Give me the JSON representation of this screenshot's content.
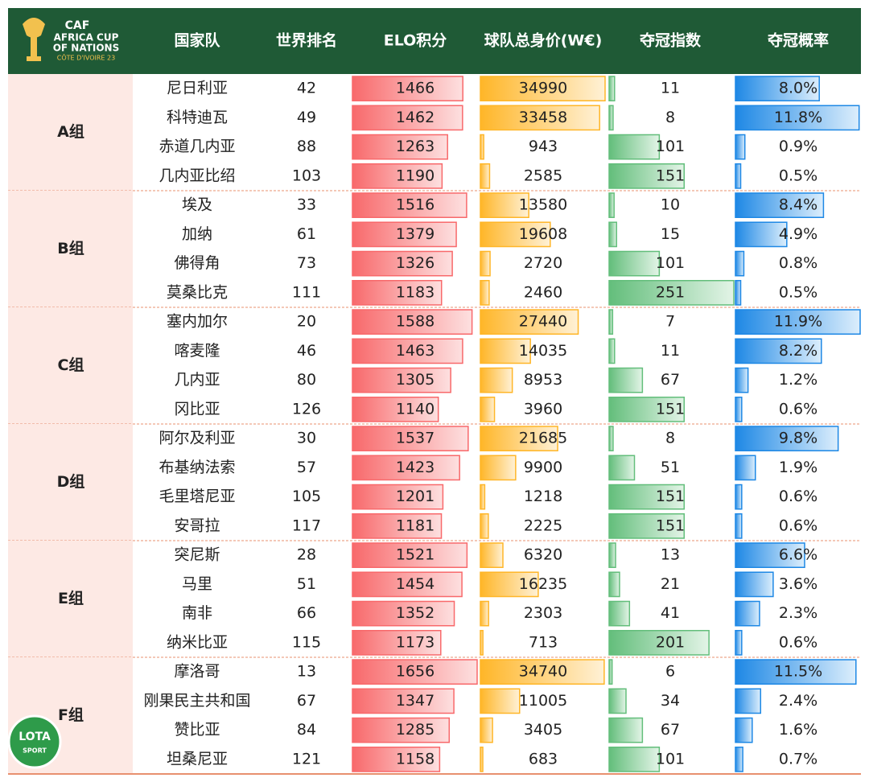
{
  "logo": {
    "caf": "CAF",
    "line1": "AFRICA CUP",
    "line2": "OF NATIONS",
    "line3": "CÔTE D'IVOIRE 23"
  },
  "watermark": {
    "top": "LOTA",
    "bottom": "SPORT"
  },
  "table": {
    "columns": [
      "国家队",
      "世界排名",
      "ELO积分",
      "球队总身价(W€)",
      "夺冠指数",
      "夺冠概率"
    ],
    "groups": [
      {
        "name": "A组",
        "rows": [
          {
            "team": "尼日利亚",
            "rank": 42,
            "elo": 1466,
            "value": 34990,
            "index": 11,
            "prob": 8.0,
            "prob_label": "8.0%"
          },
          {
            "team": "科特迪瓦",
            "rank": 49,
            "elo": 1462,
            "value": 33458,
            "index": 8,
            "prob": 11.8,
            "prob_label": "11.8%"
          },
          {
            "team": "赤道几内亚",
            "rank": 88,
            "elo": 1263,
            "value": 943,
            "index": 101,
            "prob": 0.9,
            "prob_label": "0.9%"
          },
          {
            "team": "几内亚比绍",
            "rank": 103,
            "elo": 1190,
            "value": 2585,
            "index": 151,
            "prob": 0.5,
            "prob_label": "0.5%"
          }
        ]
      },
      {
        "name": "B组",
        "rows": [
          {
            "team": "埃及",
            "rank": 33,
            "elo": 1516,
            "value": 13580,
            "index": 10,
            "prob": 8.4,
            "prob_label": "8.4%"
          },
          {
            "team": "加纳",
            "rank": 61,
            "elo": 1379,
            "value": 19608,
            "index": 15,
            "prob": 4.9,
            "prob_label": "4.9%"
          },
          {
            "team": "佛得角",
            "rank": 73,
            "elo": 1326,
            "value": 2720,
            "index": 101,
            "prob": 0.8,
            "prob_label": "0.8%"
          },
          {
            "team": "莫桑比克",
            "rank": 111,
            "elo": 1183,
            "value": 2460,
            "index": 251,
            "prob": 0.5,
            "prob_label": "0.5%"
          }
        ]
      },
      {
        "name": "C组",
        "rows": [
          {
            "team": "塞内加尔",
            "rank": 20,
            "elo": 1588,
            "value": 27440,
            "index": 7,
            "prob": 11.9,
            "prob_label": "11.9%"
          },
          {
            "team": "喀麦隆",
            "rank": 46,
            "elo": 1463,
            "value": 14035,
            "index": 11,
            "prob": 8.2,
            "prob_label": "8.2%"
          },
          {
            "team": "几内亚",
            "rank": 80,
            "elo": 1305,
            "value": 8953,
            "index": 67,
            "prob": 1.2,
            "prob_label": "1.2%"
          },
          {
            "team": "冈比亚",
            "rank": 126,
            "elo": 1140,
            "value": 3960,
            "index": 151,
            "prob": 0.6,
            "prob_label": "0.6%"
          }
        ]
      },
      {
        "name": "D组",
        "rows": [
          {
            "team": "阿尔及利亚",
            "rank": 30,
            "elo": 1537,
            "value": 21685,
            "index": 8,
            "prob": 9.8,
            "prob_label": "9.8%"
          },
          {
            "team": "布基纳法索",
            "rank": 57,
            "elo": 1423,
            "value": 9900,
            "index": 51,
            "prob": 1.9,
            "prob_label": "1.9%"
          },
          {
            "team": "毛里塔尼亚",
            "rank": 105,
            "elo": 1201,
            "value": 1218,
            "index": 151,
            "prob": 0.6,
            "prob_label": "0.6%"
          },
          {
            "team": "安哥拉",
            "rank": 117,
            "elo": 1181,
            "value": 2225,
            "index": 151,
            "prob": 0.6,
            "prob_label": "0.6%"
          }
        ]
      },
      {
        "name": "E组",
        "rows": [
          {
            "team": "突尼斯",
            "rank": 28,
            "elo": 1521,
            "value": 6320,
            "index": 13,
            "prob": 6.6,
            "prob_label": "6.6%"
          },
          {
            "team": "马里",
            "rank": 51,
            "elo": 1454,
            "value": 16235,
            "index": 21,
            "prob": 3.6,
            "prob_label": "3.6%"
          },
          {
            "team": "南非",
            "rank": 66,
            "elo": 1352,
            "value": 2303,
            "index": 41,
            "prob": 2.3,
            "prob_label": "2.3%"
          },
          {
            "team": "纳米比亚",
            "rank": 115,
            "elo": 1173,
            "value": 713,
            "index": 201,
            "prob": 0.6,
            "prob_label": "0.6%"
          }
        ]
      },
      {
        "name": "F组",
        "rows": [
          {
            "team": "摩洛哥",
            "rank": 13,
            "elo": 1656,
            "value": 34740,
            "index": 6,
            "prob": 11.5,
            "prob_label": "11.5%"
          },
          {
            "team": "刚果民主共和国",
            "rank": 67,
            "elo": 1347,
            "value": 11005,
            "index": 34,
            "prob": 2.4,
            "prob_label": "2.4%"
          },
          {
            "team": "赞比亚",
            "rank": 84,
            "elo": 1285,
            "value": 3405,
            "index": 67,
            "prob": 1.6,
            "prob_label": "1.6%"
          },
          {
            "team": "坦桑尼亚",
            "rank": 121,
            "elo": 1158,
            "value": 683,
            "index": 101,
            "prob": 0.7,
            "prob_label": "0.7%"
          }
        ]
      }
    ]
  }
}
